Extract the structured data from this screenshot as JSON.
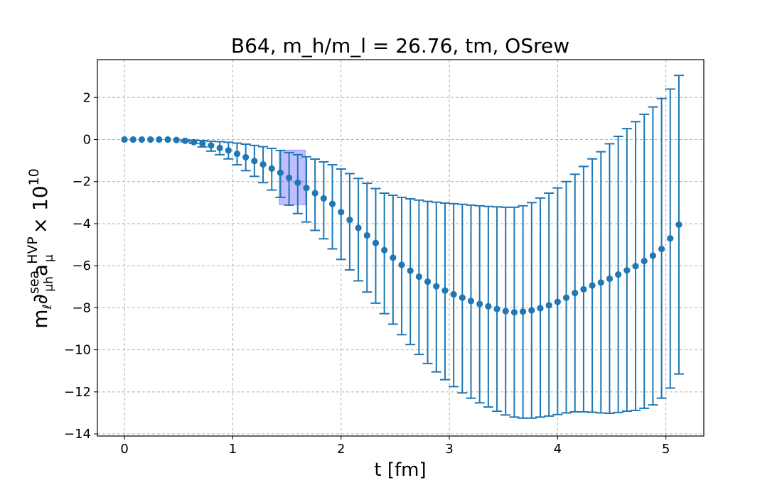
{
  "chart_data": {
    "type": "scatter",
    "title": "B64, m_h/m_l = 26.76, tm, OSrew",
    "xlabel": "t [fm]",
    "ylabel": {
      "base": "m",
      "base_sub": "ℓ",
      "partial": "∂",
      "partial_sup": "sea",
      "partial_sub": "μh",
      "a": "a",
      "a_sup": "HVP",
      "a_sub": "μ",
      "times": " × 10",
      "times_sup": "10"
    },
    "xlim": [
      -0.25,
      5.35
    ],
    "ylim": [
      -14.1,
      3.8
    ],
    "xticks": [
      0,
      1,
      2,
      3,
      4,
      5
    ],
    "yticks": [
      -14,
      -12,
      -10,
      -8,
      -6,
      -4,
      -2,
      0,
      2
    ],
    "grid": true,
    "marker_color": "#1f77b4",
    "band_color": "#0000ff",
    "band": {
      "x0": 1.43,
      "x1": 1.67,
      "y0": -3.1,
      "y1": -0.5
    },
    "series": [
      {
        "x": [
          0.0,
          0.08,
          0.16,
          0.24,
          0.32,
          0.4,
          0.48,
          0.56,
          0.64,
          0.72,
          0.8,
          0.88,
          0.96,
          1.04,
          1.12,
          1.2,
          1.28,
          1.36,
          1.44,
          1.52,
          1.6,
          1.68,
          1.76,
          1.84,
          1.92,
          2.0,
          2.08,
          2.16,
          2.24,
          2.32,
          2.4,
          2.48,
          2.56,
          2.64,
          2.72,
          2.8,
          2.88,
          2.96,
          3.04,
          3.12,
          3.2,
          3.28,
          3.36,
          3.44,
          3.52,
          3.6,
          3.68,
          3.76,
          3.84,
          3.92,
          4.0,
          4.08,
          4.16,
          4.24,
          4.32,
          4.4,
          4.48,
          4.56,
          4.64,
          4.72,
          4.8,
          4.88,
          4.96,
          5.04,
          5.12
        ],
        "y": [
          0.0,
          0.0,
          0.0,
          0.0,
          0.0,
          0.0,
          -0.02,
          -0.06,
          -0.12,
          -0.19,
          -0.28,
          -0.4,
          -0.52,
          -0.68,
          -0.84,
          -1.02,
          -1.18,
          -1.38,
          -1.58,
          -1.82,
          -2.05,
          -2.3,
          -2.55,
          -2.8,
          -3.06,
          -3.45,
          -3.82,
          -4.2,
          -4.56,
          -4.92,
          -5.26,
          -5.62,
          -5.96,
          -6.24,
          -6.52,
          -6.76,
          -6.98,
          -7.18,
          -7.36,
          -7.52,
          -7.68,
          -7.82,
          -7.93,
          -8.06,
          -8.16,
          -8.22,
          -8.18,
          -8.12,
          -8.02,
          -7.88,
          -7.72,
          -7.52,
          -7.3,
          -7.12,
          -6.94,
          -6.8,
          -6.62,
          -6.42,
          -6.22,
          -6.02,
          -5.78,
          -5.52,
          -5.2,
          -4.7,
          -4.05
        ],
        "err_low": [
          0.0,
          0.0,
          0.0,
          0.0,
          0.0,
          0.0,
          -0.03,
          -0.1,
          -0.18,
          -0.35,
          -0.55,
          -0.72,
          -0.92,
          -1.2,
          -1.48,
          -1.75,
          -2.05,
          -2.4,
          -2.75,
          -3.12,
          -3.52,
          -3.92,
          -4.32,
          -4.72,
          -5.2,
          -5.7,
          -6.2,
          -6.72,
          -7.25,
          -7.78,
          -8.28,
          -8.78,
          -9.28,
          -9.75,
          -10.22,
          -10.65,
          -11.05,
          -11.42,
          -11.75,
          -12.05,
          -12.3,
          -12.52,
          -12.72,
          -12.92,
          -13.1,
          -13.2,
          -13.25,
          -13.25,
          -13.2,
          -13.15,
          -13.08,
          -13.0,
          -12.95,
          -12.95,
          -12.97,
          -13.0,
          -13.02,
          -12.98,
          -12.92,
          -12.88,
          -12.78,
          -12.62,
          -12.3,
          -11.82,
          -11.15
        ],
        "err_high": [
          0.0,
          0.0,
          0.0,
          0.0,
          0.0,
          0.0,
          0.0,
          -0.01,
          -0.03,
          -0.05,
          -0.08,
          -0.1,
          -0.13,
          -0.17,
          -0.22,
          -0.28,
          -0.34,
          -0.42,
          -0.52,
          -0.62,
          -0.72,
          -0.82,
          -0.93,
          -1.06,
          -1.2,
          -1.4,
          -1.62,
          -1.85,
          -2.08,
          -2.33,
          -2.55,
          -2.65,
          -2.75,
          -2.82,
          -2.88,
          -2.94,
          -2.98,
          -3.02,
          -3.05,
          -3.08,
          -3.12,
          -3.15,
          -3.18,
          -3.2,
          -3.22,
          -3.22,
          -3.15,
          -3.0,
          -2.78,
          -2.55,
          -2.3,
          -2.0,
          -1.65,
          -1.28,
          -0.92,
          -0.58,
          -0.2,
          0.15,
          0.52,
          0.85,
          1.2,
          1.55,
          1.95,
          2.4,
          3.05
        ]
      }
    ]
  }
}
